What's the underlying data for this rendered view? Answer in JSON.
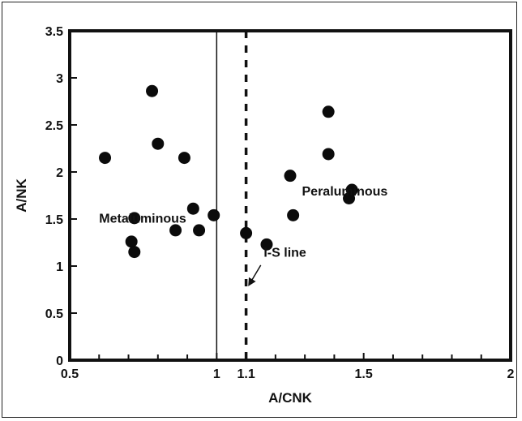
{
  "chart_data": {
    "type": "scatter",
    "xlabel": "A/CNK",
    "ylabel": "A/NK",
    "xlim": [
      0.5,
      2
    ],
    "ylim": [
      0,
      3.5
    ],
    "x_tick_labels": [
      {
        "value": 0.5,
        "label": "0.5"
      },
      {
        "value": 1.0,
        "label": "1"
      },
      {
        "value": 1.1,
        "label": "1.1"
      },
      {
        "value": 1.5,
        "label": "1.5"
      },
      {
        "value": 2.0,
        "label": "2"
      }
    ],
    "x_minor_ticks": [
      0.6,
      0.7,
      0.8,
      0.9,
      1.2,
      1.3,
      1.4,
      1.6,
      1.7,
      1.8,
      1.9
    ],
    "y_tick_labels": [
      {
        "value": 0,
        "label": "0"
      },
      {
        "value": 0.5,
        "label": "0.5"
      },
      {
        "value": 1,
        "label": "1"
      },
      {
        "value": 1.5,
        "label": "1.5"
      },
      {
        "value": 2,
        "label": "2"
      },
      {
        "value": 2.5,
        "label": "2.5"
      },
      {
        "value": 3,
        "label": "3"
      },
      {
        "value": 3.5,
        "label": "3.5"
      }
    ],
    "points": [
      {
        "x": 0.62,
        "y": 2.15
      },
      {
        "x": 0.71,
        "y": 1.26
      },
      {
        "x": 0.72,
        "y": 1.51
      },
      {
        "x": 0.72,
        "y": 1.15
      },
      {
        "x": 0.78,
        "y": 2.86
      },
      {
        "x": 0.8,
        "y": 2.3
      },
      {
        "x": 0.86,
        "y": 1.38
      },
      {
        "x": 0.89,
        "y": 2.15
      },
      {
        "x": 0.92,
        "y": 1.61
      },
      {
        "x": 0.94,
        "y": 1.38
      },
      {
        "x": 0.99,
        "y": 1.54
      },
      {
        "x": 1.1,
        "y": 1.35
      },
      {
        "x": 1.17,
        "y": 1.23
      },
      {
        "x": 1.25,
        "y": 1.96
      },
      {
        "x": 1.26,
        "y": 1.54
      },
      {
        "x": 1.38,
        "y": 2.64
      },
      {
        "x": 1.38,
        "y": 2.19
      },
      {
        "x": 1.45,
        "y": 1.72
      },
      {
        "x": 1.46,
        "y": 1.81
      }
    ],
    "reference_lines": [
      {
        "x": 1.0,
        "style": "solid"
      },
      {
        "x": 1.1,
        "style": "dashed"
      }
    ],
    "annotations": [
      {
        "text": "Metaluminous",
        "x": 0.6,
        "y": 1.46
      },
      {
        "text": "Peraluminous",
        "x": 1.29,
        "y": 1.75
      },
      {
        "text": "I-S line",
        "x": 1.16,
        "y": 1.1
      }
    ],
    "arrow": {
      "from": [
        1.15,
        1.01
      ],
      "to": [
        1.11,
        0.8
      ]
    },
    "grid": false
  }
}
